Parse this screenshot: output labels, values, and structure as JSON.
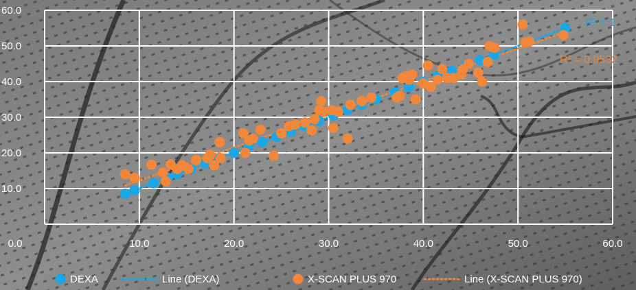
{
  "colors": {
    "dexa": "#1aa7e8",
    "xscan": "#f0873a",
    "grid": "#ffffff",
    "text": "#ffffff"
  },
  "chart_data": {
    "type": "scatter",
    "title": "",
    "xlabel": "",
    "ylabel": "",
    "xlim": [
      0,
      60
    ],
    "ylim": [
      0,
      60
    ],
    "x_ticks": [
      "0.0",
      "10.0",
      "20.0",
      "30.0",
      "40.0",
      "50.0",
      "60.0"
    ],
    "y_ticks": [
      "10.0",
      "20.0",
      "30.0",
      "40.0",
      "50.0",
      "60.0"
    ],
    "grid": true,
    "legend_position": "bottom",
    "series": [
      {
        "name": "DEXA",
        "color": "#1aa7e8",
        "trendline": {
          "label": "Line (DEXA)",
          "style": "dotted",
          "r2": "R² = 1"
        },
        "points": [
          [
            8.5,
            8.5
          ],
          [
            9.5,
            9.5
          ],
          [
            11.5,
            11.5
          ],
          [
            13.0,
            13.0
          ],
          [
            14.0,
            14.0
          ],
          [
            15.5,
            15.5
          ],
          [
            17.0,
            17.0
          ],
          [
            18.5,
            18.5
          ],
          [
            20.0,
            20.0
          ],
          [
            21.5,
            21.5
          ],
          [
            23.0,
            23.0
          ],
          [
            24.5,
            24.5
          ],
          [
            26.0,
            26.0
          ],
          [
            27.5,
            27.5
          ],
          [
            29.0,
            29.0
          ],
          [
            30.5,
            30.5
          ],
          [
            32.0,
            32.0
          ],
          [
            33.5,
            33.5
          ],
          [
            35.0,
            35.0
          ],
          [
            37.0,
            37.0
          ],
          [
            38.5,
            38.5
          ],
          [
            40.0,
            40.0
          ],
          [
            41.5,
            41.5
          ],
          [
            43.0,
            43.0
          ],
          [
            44.5,
            44.5
          ],
          [
            46.0,
            46.0
          ],
          [
            47.5,
            47.5
          ],
          [
            55.0,
            55.0
          ]
        ]
      },
      {
        "name": "X-SCAN PLUS 970",
        "color": "#f0873a",
        "trendline": {
          "label": "Line (X-SCAN PLUS 970)",
          "style": "dotted",
          "r2": "R² = 0.9532"
        },
        "points": [
          [
            8.5,
            14.0
          ],
          [
            9.5,
            13.0
          ],
          [
            11.3,
            16.7
          ],
          [
            12.5,
            14.5
          ],
          [
            12.8,
            12.0
          ],
          [
            13.3,
            16.8
          ],
          [
            14.0,
            15.5
          ],
          [
            14.5,
            16.5
          ],
          [
            15.2,
            15.5
          ],
          [
            16.0,
            18.0
          ],
          [
            17.2,
            18.5
          ],
          [
            17.5,
            19.5
          ],
          [
            17.9,
            16.5
          ],
          [
            18.5,
            23.0
          ],
          [
            18.6,
            18.5
          ],
          [
            21.0,
            25.5
          ],
          [
            21.2,
            20.0
          ],
          [
            21.6,
            23.5
          ],
          [
            22.0,
            24.0
          ],
          [
            22.8,
            26.5
          ],
          [
            24.2,
            19.2
          ],
          [
            25.0,
            25.5
          ],
          [
            25.8,
            27.5
          ],
          [
            26.5,
            28.0
          ],
          [
            27.5,
            28.5
          ],
          [
            28.2,
            26.3
          ],
          [
            28.5,
            29.5
          ],
          [
            29.0,
            32.0
          ],
          [
            29.2,
            34.5
          ],
          [
            29.5,
            31.5
          ],
          [
            30.3,
            32.0
          ],
          [
            30.5,
            27.0
          ],
          [
            31.0,
            31.5
          ],
          [
            32.0,
            24.0
          ],
          [
            32.3,
            33.5
          ],
          [
            33.5,
            34.5
          ],
          [
            34.5,
            35.5
          ],
          [
            37.2,
            35.5
          ],
          [
            37.5,
            36.0
          ],
          [
            37.8,
            41.0
          ],
          [
            38.2,
            41.5
          ],
          [
            38.5,
            40.5
          ],
          [
            38.8,
            42.0
          ],
          [
            39.2,
            35.0
          ],
          [
            40.0,
            39.5
          ],
          [
            40.5,
            44.5
          ],
          [
            40.8,
            38.5
          ],
          [
            41.5,
            40.5
          ],
          [
            42.0,
            43.5
          ],
          [
            42.5,
            41.0
          ],
          [
            43.2,
            41.0
          ],
          [
            44.0,
            42.0
          ],
          [
            44.2,
            43.5
          ],
          [
            44.8,
            45.0
          ],
          [
            45.8,
            42.5
          ],
          [
            46.2,
            40.0
          ],
          [
            46.8,
            45.5
          ],
          [
            47.0,
            50.0
          ],
          [
            47.5,
            49.5
          ],
          [
            50.5,
            56.0
          ],
          [
            50.8,
            51.0
          ],
          [
            51.2,
            51.2
          ],
          [
            54.8,
            53.0
          ]
        ]
      }
    ]
  }
}
